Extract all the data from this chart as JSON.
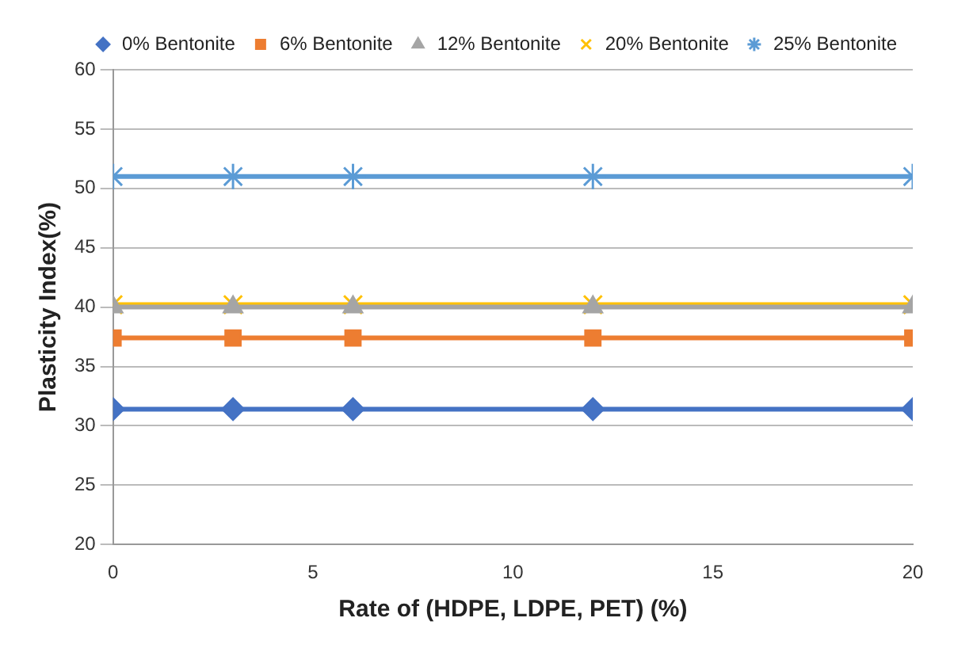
{
  "chart_data": {
    "type": "line",
    "xlabel": "Rate of (HDPE, LDPE, PET) (%)",
    "ylabel": "Plasticity Index(%)",
    "x": [
      0,
      3,
      6,
      12,
      20
    ],
    "series": [
      {
        "name": "0% Bentonite",
        "color": "#4472c4",
        "marker": "diamond",
        "values": [
          31.4,
          31.4,
          31.4,
          31.4,
          31.4
        ]
      },
      {
        "name": "6% Bentonite",
        "color": "#ed7d31",
        "marker": "square",
        "values": [
          37.4,
          37.4,
          37.4,
          37.4,
          37.4
        ]
      },
      {
        "name": "12% Bentonite",
        "color": "#a5a5a5",
        "marker": "triangle",
        "values": [
          40,
          40,
          40,
          40,
          40
        ]
      },
      {
        "name": "20% Bentonite",
        "color": "#ffc000",
        "marker": "cross",
        "values": [
          40.2,
          40.2,
          40.2,
          40.2,
          40.2
        ]
      },
      {
        "name": "25% Bentonite",
        "color": "#5b9bd5",
        "marker": "cross",
        "values": [
          51,
          51,
          51,
          51,
          51
        ]
      }
    ],
    "xlim": [
      0,
      20
    ],
    "xticks": [
      0,
      5,
      10,
      15,
      20
    ],
    "ylim": [
      20,
      60
    ],
    "yticks": [
      20,
      25,
      30,
      35,
      40,
      45,
      50,
      55,
      60
    ],
    "grid": "y",
    "legend": "top right",
    "line_style": "solid"
  }
}
